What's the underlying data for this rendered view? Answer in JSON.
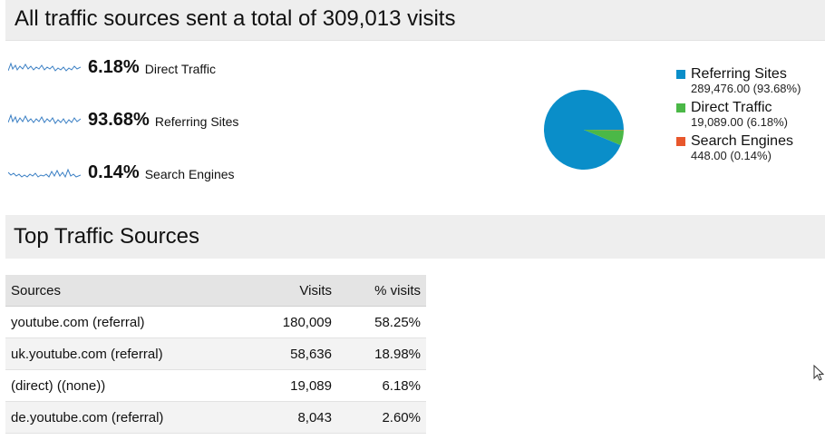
{
  "header": {
    "title": "All traffic sources sent a total of 309,013 visits"
  },
  "metrics": [
    {
      "pct": "6.18%",
      "label": "Direct Traffic"
    },
    {
      "pct": "93.68%",
      "label": "Referring Sites"
    },
    {
      "pct": "0.14%",
      "label": "Search Engines"
    }
  ],
  "legend": [
    {
      "name": "Referring Sites",
      "value": "289,476.00 (93.68%)",
      "color": "#0a8ec9"
    },
    {
      "name": "Direct Traffic",
      "value": "19,089.00 (6.18%)",
      "color": "#4bb847"
    },
    {
      "name": "Search Engines",
      "value": "448.00 (0.14%)",
      "color": "#e8572c"
    }
  ],
  "chart_data": {
    "type": "pie",
    "categories": [
      "Referring Sites",
      "Direct Traffic",
      "Search Engines"
    ],
    "values": [
      289476.0,
      19089.0,
      448.0
    ],
    "colors": [
      "#0a8ec9",
      "#4bb847",
      "#e8572c"
    ],
    "legend": "right"
  },
  "section": {
    "title": "Top Traffic Sources"
  },
  "table": {
    "headers": {
      "source": "Sources",
      "visits": "Visits",
      "pct": "% visits"
    },
    "rows": [
      {
        "source": "youtube.com (referral)",
        "visits": "180,009",
        "pct": "58.25%"
      },
      {
        "source": "uk.youtube.com (referral)",
        "visits": "58,636",
        "pct": "18.98%"
      },
      {
        "source": "(direct) ((none))",
        "visits": "19,089",
        "pct": "6.18%"
      },
      {
        "source": "de.youtube.com (referral)",
        "visits": "8,043",
        "pct": "2.60%"
      }
    ]
  }
}
